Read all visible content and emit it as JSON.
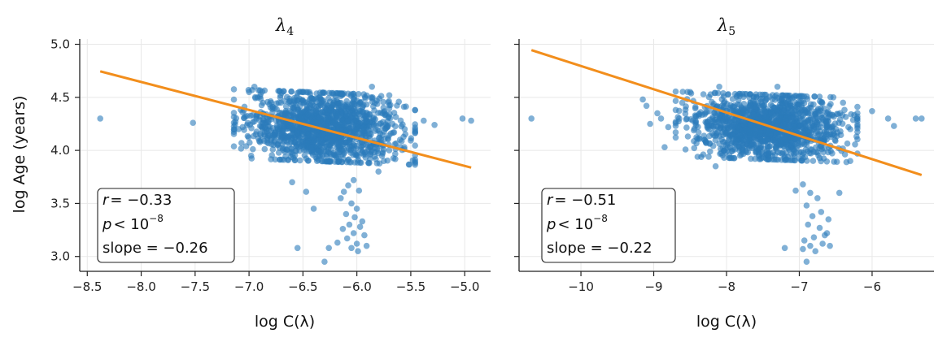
{
  "figure": {
    "ylabel": "log Age (years)",
    "shared_y_ticks": [
      "3.0",
      "3.5",
      "4.0",
      "4.5",
      "5.0"
    ]
  },
  "panels": [
    {
      "title": "λ",
      "title_sub": "4",
      "xlabel_prefix": "log C(λ)",
      "stats": {
        "r_label": "r",
        "r_value": "= −0.33",
        "p_label": "p",
        "p_value": "< 10",
        "p_exp": "−8",
        "slope_text": "slope = −0.26"
      },
      "x_ticks": [
        "−8.5",
        "−8.0",
        "−7.5",
        "−7.0",
        "−6.5",
        "−6.0",
        "−5.5",
        "−5.0"
      ]
    },
    {
      "title": "λ",
      "title_sub": "5",
      "xlabel_prefix": "log C(λ)",
      "stats": {
        "r_label": "r",
        "r_value": "= −0.51",
        "p_label": "p",
        "p_value": "< 10",
        "p_exp": "−8",
        "slope_text": "slope = −0.22"
      },
      "x_ticks": [
        "−10",
        "−9",
        "−8",
        "−7",
        "−6"
      ]
    }
  ],
  "chart_data": [
    {
      "type": "scatter",
      "title": "λ4",
      "xlabel": "log C(λ)",
      "ylabel": "log Age (years)",
      "xlim": [
        -8.57,
        -4.76
      ],
      "ylim": [
        2.86,
        5.05
      ],
      "x_ticks": [
        -8.5,
        -8.0,
        -7.5,
        -7.0,
        -6.5,
        -6.0,
        -5.5,
        -5.0
      ],
      "y_ticks": [
        3.0,
        3.5,
        4.0,
        4.5,
        5.0
      ],
      "cluster": {
        "x_center": -6.3,
        "x_spread": 0.35,
        "y_center": 4.22,
        "y_spread": 0.17,
        "n": 1400
      },
      "points": [
        {
          "x": -8.38,
          "y": 4.3
        },
        {
          "x": -7.52,
          "y": 4.26
        },
        {
          "x": -5.02,
          "y": 4.3
        },
        {
          "x": -4.94,
          "y": 4.28
        },
        {
          "x": -5.38,
          "y": 4.28
        },
        {
          "x": -5.28,
          "y": 4.24
        },
        {
          "x": -5.46,
          "y": 4.38
        },
        {
          "x": -7.07,
          "y": 4.07
        },
        {
          "x": -7.06,
          "y": 4.36
        },
        {
          "x": -6.12,
          "y": 3.61
        },
        {
          "x": -6.08,
          "y": 3.67
        },
        {
          "x": -6.03,
          "y": 3.72
        },
        {
          "x": -5.98,
          "y": 3.62
        },
        {
          "x": -6.15,
          "y": 3.55
        },
        {
          "x": -6.05,
          "y": 3.5
        },
        {
          "x": -6.0,
          "y": 3.45
        },
        {
          "x": -6.1,
          "y": 3.4
        },
        {
          "x": -6.02,
          "y": 3.37
        },
        {
          "x": -5.95,
          "y": 3.33
        },
        {
          "x": -6.07,
          "y": 3.3
        },
        {
          "x": -5.97,
          "y": 3.28
        },
        {
          "x": -6.13,
          "y": 3.26
        },
        {
          "x": -6.03,
          "y": 3.22
        },
        {
          "x": -5.93,
          "y": 3.2
        },
        {
          "x": -6.09,
          "y": 3.17
        },
        {
          "x": -6.18,
          "y": 3.13
        },
        {
          "x": -6.0,
          "y": 3.12
        },
        {
          "x": -5.91,
          "y": 3.1
        },
        {
          "x": -6.05,
          "y": 3.08
        },
        {
          "x": -6.26,
          "y": 3.08
        },
        {
          "x": -5.99,
          "y": 3.05
        },
        {
          "x": -6.3,
          "y": 2.95
        },
        {
          "x": -6.47,
          "y": 3.61
        },
        {
          "x": -6.55,
          "y": 3.08
        },
        {
          "x": -6.4,
          "y": 3.45
        },
        {
          "x": -5.8,
          "y": 3.8
        },
        {
          "x": -5.75,
          "y": 3.9
        },
        {
          "x": -6.6,
          "y": 3.7
        },
        {
          "x": -5.86,
          "y": 4.6
        },
        {
          "x": -6.95,
          "y": 4.6
        },
        {
          "x": -7.0,
          "y": 4.55
        },
        {
          "x": -6.98,
          "y": 3.95
        },
        {
          "x": -5.6,
          "y": 4.1
        },
        {
          "x": -5.7,
          "y": 4.0
        }
      ],
      "fit_line": {
        "x": [
          -8.38,
          -4.94
        ],
        "y": [
          4.745,
          3.838
        ]
      },
      "annotation": {
        "r": -0.33,
        "p": "< 10^-8",
        "slope": -0.26
      }
    },
    {
      "type": "scatter",
      "title": "λ5",
      "xlabel": "log C(λ)",
      "ylabel": "log Age (years)",
      "xlim": [
        -10.85,
        -5.15
      ],
      "ylim": [
        2.86,
        5.05
      ],
      "x_ticks": [
        -10,
        -9,
        -8,
        -7,
        -6
      ],
      "y_ticks": [
        3.0,
        3.5,
        4.0,
        4.5,
        5.0
      ],
      "cluster": {
        "x_center": -7.45,
        "x_spread": 0.52,
        "y_center": 4.22,
        "y_spread": 0.16,
        "n": 1400
      },
      "points": [
        {
          "x": -10.68,
          "y": 4.3
        },
        {
          "x": -5.4,
          "y": 4.3
        },
        {
          "x": -5.32,
          "y": 4.3
        },
        {
          "x": -5.7,
          "y": 4.23
        },
        {
          "x": -5.78,
          "y": 4.3
        },
        {
          "x": -6.0,
          "y": 4.37
        },
        {
          "x": -9.15,
          "y": 4.48
        },
        {
          "x": -9.1,
          "y": 4.42
        },
        {
          "x": -8.95,
          "y": 4.35
        },
        {
          "x": -8.9,
          "y": 4.3
        },
        {
          "x": -9.05,
          "y": 4.25
        },
        {
          "x": -8.8,
          "y": 4.22
        },
        {
          "x": -8.65,
          "y": 4.3
        },
        {
          "x": -8.85,
          "y": 4.03
        },
        {
          "x": -8.5,
          "y": 4.55
        },
        {
          "x": -8.3,
          "y": 4.1
        },
        {
          "x": -8.15,
          "y": 3.85
        },
        {
          "x": -7.05,
          "y": 3.62
        },
        {
          "x": -6.95,
          "y": 3.68
        },
        {
          "x": -6.85,
          "y": 3.6
        },
        {
          "x": -6.75,
          "y": 3.55
        },
        {
          "x": -6.9,
          "y": 3.48
        },
        {
          "x": -6.7,
          "y": 3.42
        },
        {
          "x": -6.82,
          "y": 3.38
        },
        {
          "x": -6.6,
          "y": 3.35
        },
        {
          "x": -6.88,
          "y": 3.3
        },
        {
          "x": -6.72,
          "y": 3.27
        },
        {
          "x": -6.62,
          "y": 3.22
        },
        {
          "x": -6.8,
          "y": 3.18
        },
        {
          "x": -6.93,
          "y": 3.15
        },
        {
          "x": -6.68,
          "y": 3.12
        },
        {
          "x": -6.85,
          "y": 3.1
        },
        {
          "x": -6.58,
          "y": 3.1
        },
        {
          "x": -7.2,
          "y": 3.08
        },
        {
          "x": -6.95,
          "y": 3.07
        },
        {
          "x": -6.78,
          "y": 3.05
        },
        {
          "x": -6.9,
          "y": 2.95
        },
        {
          "x": -6.65,
          "y": 3.2
        },
        {
          "x": -6.45,
          "y": 3.6
        },
        {
          "x": -6.3,
          "y": 3.9
        },
        {
          "x": -6.4,
          "y": 4.45
        },
        {
          "x": -7.3,
          "y": 4.6
        },
        {
          "x": -8.1,
          "y": 4.6
        },
        {
          "x": -6.3,
          "y": 4.2
        }
      ],
      "fit_line": {
        "x": [
          -10.68,
          -5.32
        ],
        "y": [
          4.945,
          3.768
        ]
      },
      "annotation": {
        "r": -0.51,
        "p": "< 10^-8",
        "slope": -0.22
      }
    }
  ],
  "colors": {
    "points": "#2b7bba",
    "fit_line": "#f28e1c",
    "axis": "#222222",
    "grid": "#e8e8e8"
  }
}
